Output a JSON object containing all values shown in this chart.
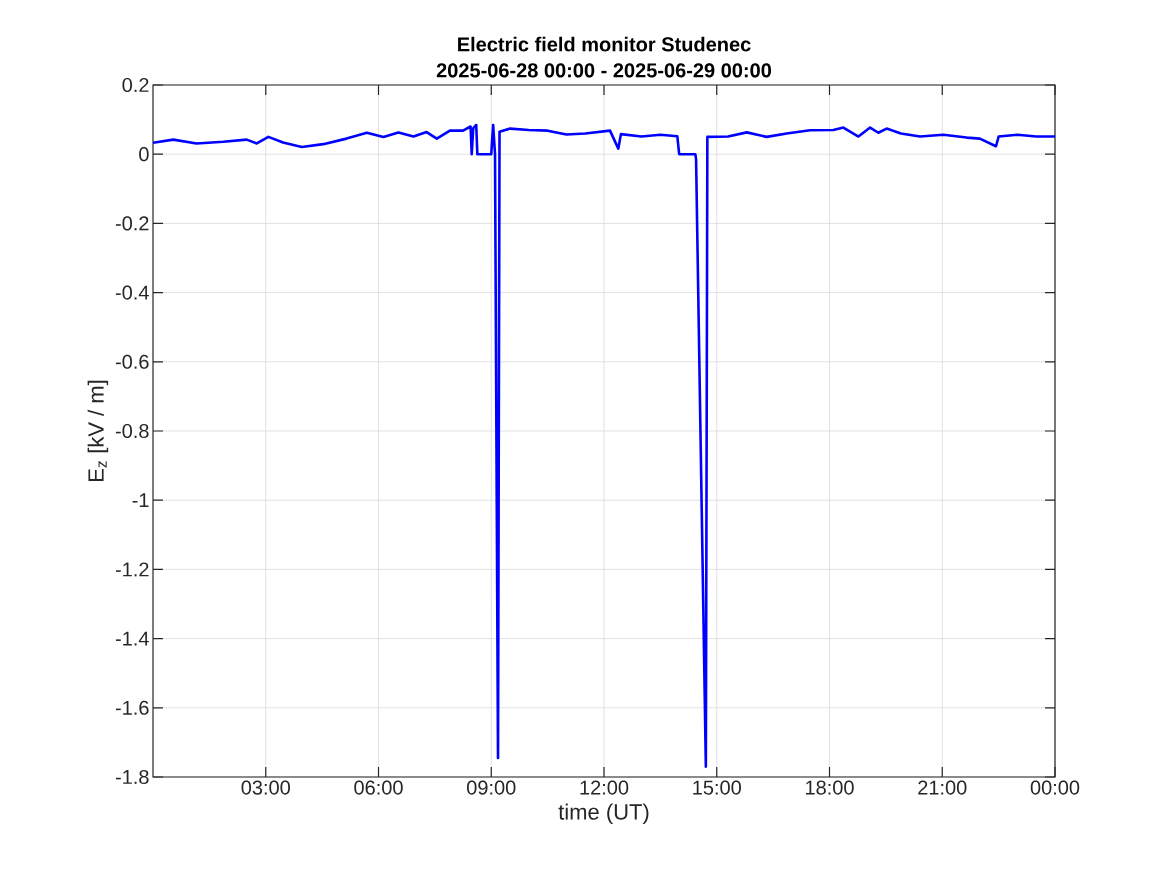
{
  "chart_data": {
    "type": "line",
    "title": "Electric field monitor Studenec",
    "subtitle": "2025-06-28 00:00 - 2025-06-29 00:00",
    "xlabel": "time (UT)",
    "ylabel": "E$_{z}$ [kV / m]",
    "x": [
      0,
      0.54,
      1.16,
      1.87,
      2.49,
      2.76,
      3.07,
      3.46,
      3.96,
      4.53,
      5.15,
      5.69,
      6.13,
      6.53,
      6.93,
      7.28,
      7.55,
      7.9,
      8.25,
      8.45,
      8.48,
      8.52,
      8.6,
      8.63,
      9.0,
      9.05,
      9.1,
      9.18,
      9.22,
      9.5,
      10.0,
      10.5,
      11.0,
      11.5,
      12.16,
      12.38,
      12.45,
      13.0,
      13.5,
      13.95,
      14.0,
      14.43,
      14.45,
      14.71,
      14.75,
      15.3,
      15.8,
      16.33,
      16.86,
      17.48,
      18.1,
      18.37,
      18.77,
      19.08,
      19.3,
      19.52,
      19.9,
      20.41,
      21.03,
      21.65,
      22.0,
      22.43,
      22.5,
      23.0,
      23.5,
      24
    ],
    "series": [
      {
        "color": "#0000ff",
        "values": [
          0.033,
          0.042,
          0.031,
          0.036,
          0.042,
          0.031,
          0.05,
          0.034,
          0.021,
          0.029,
          0.045,
          0.062,
          0.05,
          0.063,
          0.051,
          0.064,
          0.045,
          0.068,
          0.068,
          0.08,
          0.0,
          0.075,
          0.085,
          0.0,
          0.0,
          0.085,
          0.0,
          -1.745,
          0.065,
          0.074,
          0.07,
          0.068,
          0.057,
          0.06,
          0.068,
          0.016,
          0.058,
          0.051,
          0.056,
          0.052,
          0.0,
          0.0,
          -0.015,
          -1.77,
          0.05,
          0.051,
          0.063,
          0.05,
          0.06,
          0.069,
          0.07,
          0.077,
          0.051,
          0.077,
          0.062,
          0.074,
          0.06,
          0.051,
          0.056,
          0.048,
          0.045,
          0.023,
          0.051,
          0.056,
          0.051,
          0.051
        ]
      }
    ],
    "xlim": [
      0,
      24
    ],
    "ylim": [
      -1.8,
      0.2
    ],
    "xticks": [
      {
        "value": 3,
        "label": "03:00"
      },
      {
        "value": 6,
        "label": "06:00"
      },
      {
        "value": 9,
        "label": "09:00"
      },
      {
        "value": 12,
        "label": "12:00"
      },
      {
        "value": 15,
        "label": "15:00"
      },
      {
        "value": 18,
        "label": "18:00"
      },
      {
        "value": 21,
        "label": "21:00"
      },
      {
        "value": 24,
        "label": "00:00"
      }
    ],
    "yticks": [
      -1.8,
      -1.6,
      -1.4,
      -1.2,
      -1,
      -0.8,
      -0.6,
      -0.4,
      -0.2,
      0,
      0.2
    ],
    "grid": true,
    "marker": "none",
    "line_style": "solid"
  }
}
